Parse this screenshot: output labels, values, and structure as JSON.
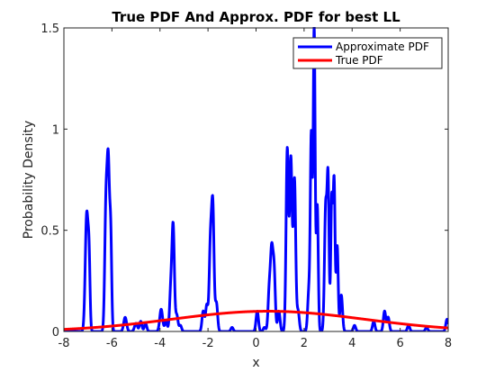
{
  "chart_data": {
    "type": "line",
    "title": "True PDF And Approx. PDF for best LL",
    "xlabel": "x",
    "ylabel": "Probability Density",
    "xlim": [
      -8,
      8
    ],
    "ylim": [
      0,
      1.5
    ],
    "xticks": [
      -8,
      -6,
      -4,
      -2,
      0,
      2,
      4,
      6,
      8
    ],
    "yticks": [
      0,
      0.5,
      1,
      1.5
    ],
    "ytick_labels": [
      "0",
      "0.5",
      "1",
      "1.5"
    ],
    "grid": false,
    "legend_position": "top-right",
    "series": [
      {
        "name": "Approximate PDF",
        "color": "#0000ff",
        "style": "spiky",
        "peaks": [
          {
            "x": -7.05,
            "y": 0.58,
            "w": 0.06
          },
          {
            "x": -6.95,
            "y": 0.3,
            "w": 0.04
          },
          {
            "x": -6.25,
            "y": 0.6,
            "w": 0.05
          },
          {
            "x": -6.15,
            "y": 0.79,
            "w": 0.05
          },
          {
            "x": -6.05,
            "y": 0.45,
            "w": 0.04
          },
          {
            "x": -5.45,
            "y": 0.07,
            "w": 0.06
          },
          {
            "x": -5.0,
            "y": 0.04,
            "w": 0.06
          },
          {
            "x": -4.8,
            "y": 0.05,
            "w": 0.05
          },
          {
            "x": -4.6,
            "y": 0.04,
            "w": 0.05
          },
          {
            "x": -3.95,
            "y": 0.11,
            "w": 0.06
          },
          {
            "x": -3.75,
            "y": 0.05,
            "w": 0.05
          },
          {
            "x": -3.55,
            "y": 0.2,
            "w": 0.05
          },
          {
            "x": -3.45,
            "y": 0.51,
            "w": 0.05
          },
          {
            "x": -3.3,
            "y": 0.08,
            "w": 0.05
          },
          {
            "x": -3.15,
            "y": 0.03,
            "w": 0.05
          },
          {
            "x": -2.2,
            "y": 0.1,
            "w": 0.05
          },
          {
            "x": -2.05,
            "y": 0.13,
            "w": 0.05
          },
          {
            "x": -1.9,
            "y": 0.42,
            "w": 0.05
          },
          {
            "x": -1.8,
            "y": 0.6,
            "w": 0.05
          },
          {
            "x": -1.65,
            "y": 0.14,
            "w": 0.05
          },
          {
            "x": -1.0,
            "y": 0.02,
            "w": 0.05
          },
          {
            "x": 0.05,
            "y": 0.1,
            "w": 0.05
          },
          {
            "x": 0.35,
            "y": 0.02,
            "w": 0.05
          },
          {
            "x": 0.55,
            "y": 0.2,
            "w": 0.05
          },
          {
            "x": 0.65,
            "y": 0.37,
            "w": 0.05
          },
          {
            "x": 0.75,
            "y": 0.3,
            "w": 0.05
          },
          {
            "x": 0.95,
            "y": 0.1,
            "w": 0.05
          },
          {
            "x": 1.3,
            "y": 0.9,
            "w": 0.05
          },
          {
            "x": 1.45,
            "y": 0.85,
            "w": 0.05
          },
          {
            "x": 1.6,
            "y": 0.75,
            "w": 0.05
          },
          {
            "x": 1.75,
            "y": 0.1,
            "w": 0.05
          },
          {
            "x": 2.2,
            "y": 0.2,
            "w": 0.05
          },
          {
            "x": 2.3,
            "y": 0.95,
            "w": 0.04
          },
          {
            "x": 2.42,
            "y": 1.5,
            "w": 0.04
          },
          {
            "x": 2.55,
            "y": 0.62,
            "w": 0.04
          },
          {
            "x": 2.9,
            "y": 0.62,
            "w": 0.05
          },
          {
            "x": 3.0,
            "y": 0.71,
            "w": 0.04
          },
          {
            "x": 3.15,
            "y": 0.65,
            "w": 0.04
          },
          {
            "x": 3.25,
            "y": 0.74,
            "w": 0.04
          },
          {
            "x": 3.38,
            "y": 0.42,
            "w": 0.04
          },
          {
            "x": 3.55,
            "y": 0.18,
            "w": 0.05
          },
          {
            "x": 4.1,
            "y": 0.03,
            "w": 0.05
          },
          {
            "x": 4.9,
            "y": 0.05,
            "w": 0.05
          },
          {
            "x": 5.35,
            "y": 0.1,
            "w": 0.05
          },
          {
            "x": 5.5,
            "y": 0.07,
            "w": 0.05
          },
          {
            "x": 6.35,
            "y": 0.03,
            "w": 0.05
          },
          {
            "x": 7.1,
            "y": 0.02,
            "w": 0.05
          },
          {
            "x": 7.95,
            "y": 0.06,
            "w": 0.05
          }
        ]
      },
      {
        "name": "True PDF",
        "color": "#ff0000",
        "style": "gaussian",
        "mean": 0.5,
        "std": 4.0,
        "peak": 0.1
      }
    ]
  }
}
